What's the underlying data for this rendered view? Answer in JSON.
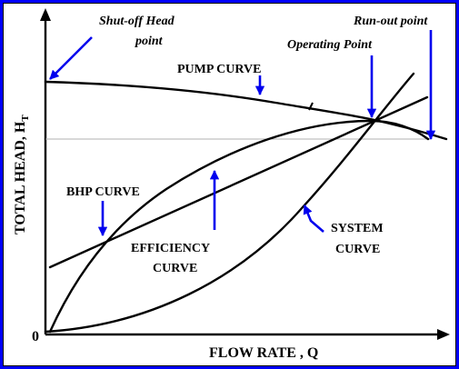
{
  "labels": {
    "shutoff_line1": "Shut-off Head",
    "shutoff_line2": "point",
    "runout": "Run-out point",
    "operating": "Operating Point",
    "pump_curve": "PUMP CURVE",
    "bhp_curve": "BHP CURVE",
    "efficiency_line1": "EFFICIENCY",
    "efficiency_line2": "CURVE",
    "system_line1": "SYSTEM",
    "system_line2": "CURVE",
    "origin": "0",
    "x_axis": "FLOW RATE , Q",
    "y_axis_main": "TOTAL HEAD, H",
    "y_axis_sub": "T"
  },
  "colors": {
    "frame": "#0000ff",
    "arrow": "#0000ee",
    "curve": "#000000",
    "reference_line": "#b0b0b0"
  }
}
